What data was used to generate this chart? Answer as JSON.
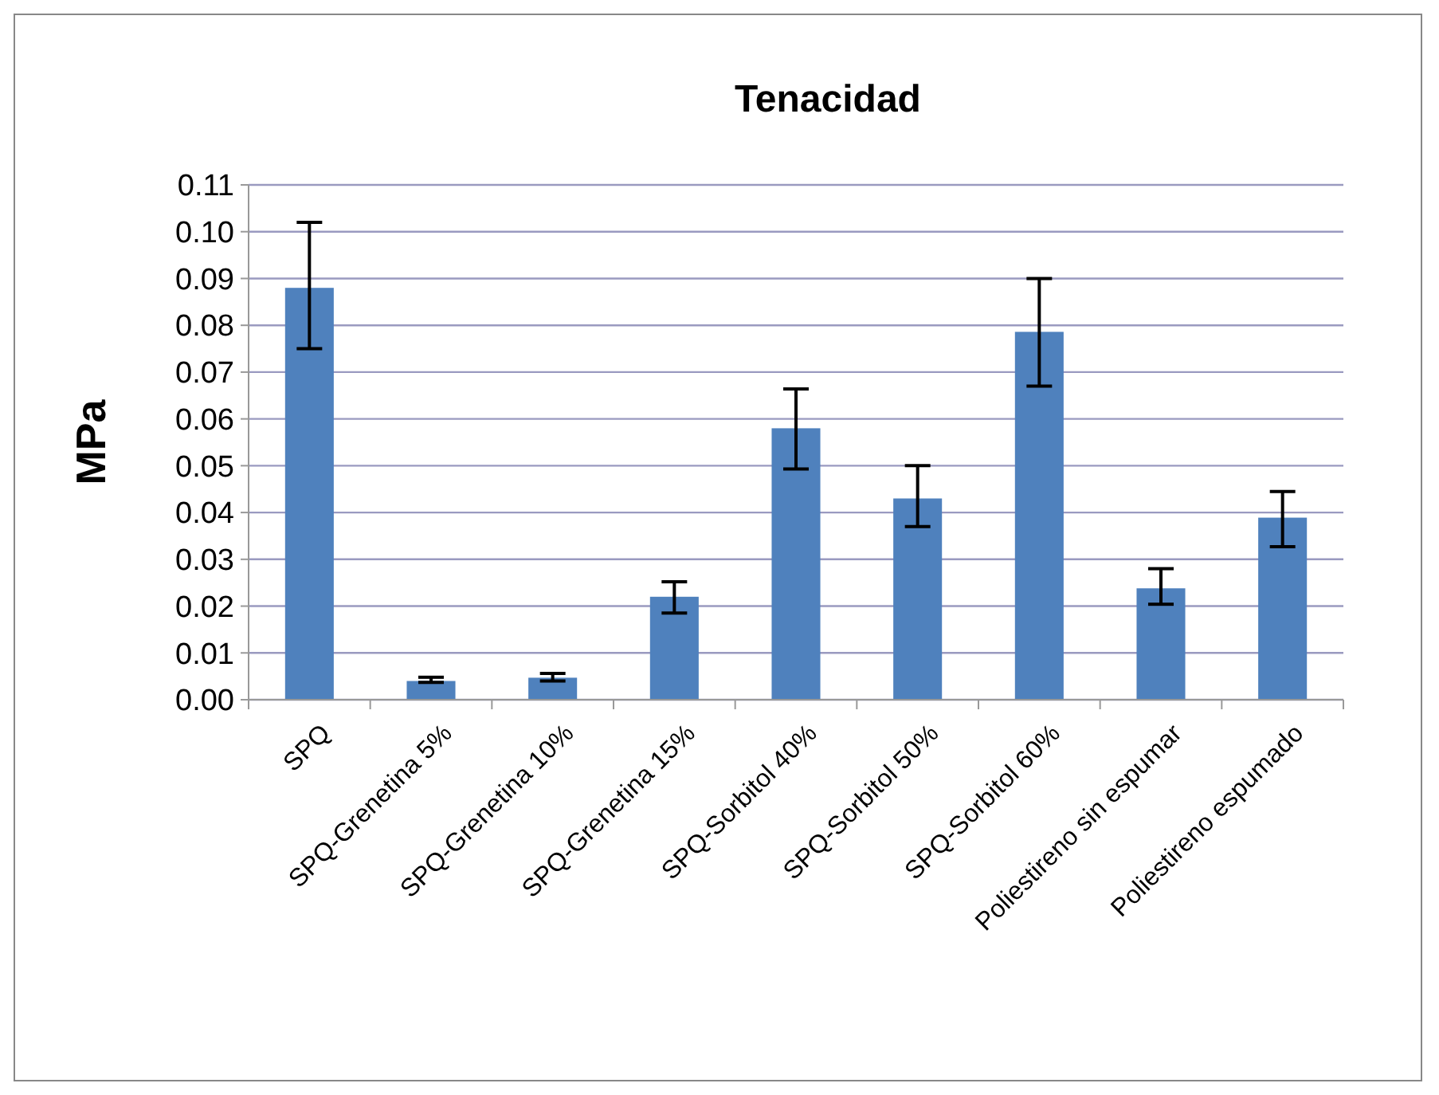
{
  "chart_data": {
    "type": "bar",
    "title": "Tenacidad",
    "ylabel": "MPa",
    "categories": [
      "SPQ",
      "SPQ-Grenetina 5%",
      "SPQ-Grenetina 10%",
      "SPQ-Grenetina 15%",
      "SPQ-Sorbitol 40%",
      "SPQ-Sorbitol 50%",
      "SPQ-Sorbitol 60%",
      "Poliestireno sin espumar",
      "Poliestireno espumado"
    ],
    "values": [
      0.088,
      0.004,
      0.0047,
      0.022,
      0.058,
      0.043,
      0.0786,
      0.0238,
      0.0389
    ],
    "errors": [
      [
        0.075,
        0.102
      ],
      [
        0.0037,
        0.0048
      ],
      [
        0.004,
        0.0056
      ],
      [
        0.0185,
        0.0252
      ],
      [
        0.0493,
        0.0664
      ],
      [
        0.037,
        0.05
      ],
      [
        0.067,
        0.09
      ],
      [
        0.0204,
        0.028
      ],
      [
        0.0327,
        0.0445
      ]
    ],
    "color": "#4f81bd",
    "ylim": [
      0,
      0.11
    ],
    "yticks": [
      {
        "value": 0,
        "label": "0.00"
      },
      {
        "value": 0.01,
        "label": "0.01"
      },
      {
        "value": 0.02,
        "label": "0.02"
      },
      {
        "value": 0.03,
        "label": "0.03"
      },
      {
        "value": 0.04,
        "label": "0.04"
      },
      {
        "value": 0.05,
        "label": "0.05"
      },
      {
        "value": 0.06,
        "label": "0.06"
      },
      {
        "value": 0.07,
        "label": "0.07"
      },
      {
        "value": 0.08,
        "label": "0.08"
      },
      {
        "value": 0.09,
        "label": "0.09"
      },
      {
        "value": 0.1,
        "label": "0.10"
      },
      {
        "value": 0.11,
        "label": "0.11"
      }
    ],
    "grid": "y"
  }
}
